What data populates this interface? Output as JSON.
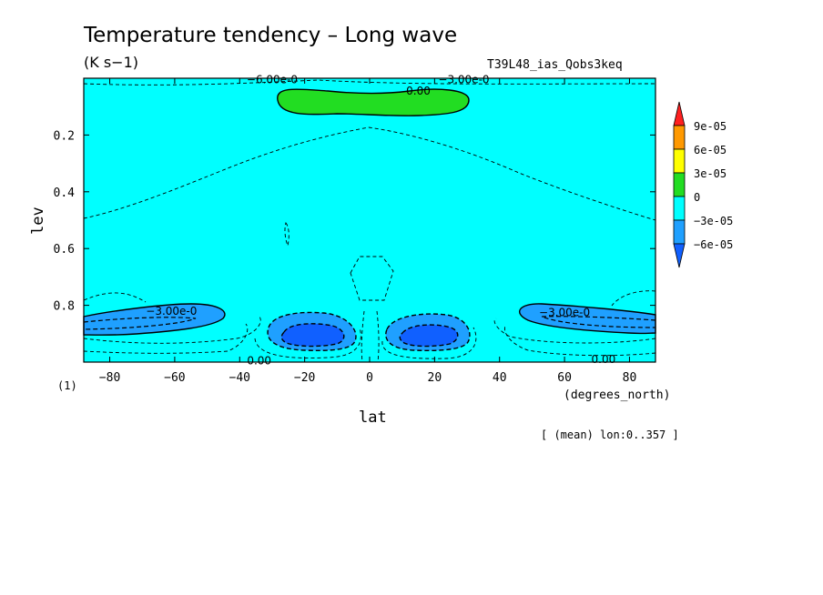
{
  "chart_data": {
    "type": "contour",
    "title": "Temperature tendency – Long wave",
    "units": "(K s−1)",
    "experiment": "T39L48_ias_Qobs3keq",
    "xlabel": "lat",
    "x_units": "(degrees_north)",
    "ylabel": "lev",
    "y_units": "(1)",
    "footnote": "[ (mean) lon:0..357 ]",
    "xlim": [
      -88,
      88
    ],
    "ylim": [
      0.0,
      1.0
    ],
    "y_inverted": true,
    "x_ticks": [
      -80,
      -60,
      -40,
      -20,
      0,
      20,
      40,
      60,
      80
    ],
    "x_tick_labels": [
      "−80",
      "−60",
      "−40",
      "−20",
      "0",
      "20",
      "40",
      "60",
      "80"
    ],
    "y_ticks": [
      0.2,
      0.4,
      0.6,
      0.8
    ],
    "y_tick_labels": [
      "0.2",
      "0.4",
      "0.6",
      "0.8"
    ],
    "colorbar": {
      "labels": [
        "9e-05",
        "6e-05",
        "3e-05",
        "0",
        "−3e-05",
        "−6e-05"
      ],
      "colors": [
        "#ff2020",
        "#ff9900",
        "#ffff00",
        "#22dd22",
        "#00ffff",
        "#1fa0ff",
        "#1060ff"
      ]
    },
    "contour_labels": [
      {
        "text": "−6.00e-0",
        "lat": -30,
        "lev": 0.005
      },
      {
        "text": "−3.00e-0",
        "lat": 29,
        "lev": 0.005
      },
      {
        "text": "0.00",
        "lat": 15,
        "lev": 0.045
      },
      {
        "text": "−3.00e-0",
        "lat": -61,
        "lev": 0.82
      },
      {
        "text": "−3.00e-0",
        "lat": 60,
        "lev": 0.825
      },
      {
        "text": "0.00",
        "lat": -34,
        "lev": 0.995
      },
      {
        "text": "0.00",
        "lat": 72,
        "lev": 0.99
      }
    ],
    "regions": [
      {
        "name": "warming-top",
        "value_range": "0 to 3e-05",
        "lat_range": [
          -27,
          29
        ],
        "lev_range": [
          0.04,
          0.12
        ]
      },
      {
        "name": "cooling-left-low",
        "value_range": "-3e-05 to -6e-05",
        "lat_range": [
          -88,
          -44
        ],
        "lev_range": [
          0.79,
          0.9
        ]
      },
      {
        "name": "cooling-right-low",
        "value_range": "-3e-05 to -6e-05",
        "lat_range": [
          45,
          88
        ],
        "lev_range": [
          0.79,
          0.88
        ]
      },
      {
        "name": "cooling-core-sh",
        "value_range": "< -6e-05",
        "lat_range": [
          -33,
          -7
        ],
        "lev_range": [
          0.82,
          0.95
        ]
      },
      {
        "name": "cooling-core-nh",
        "value_range": "< -6e-05",
        "lat_range": [
          5,
          33
        ],
        "lev_range": [
          0.82,
          0.95
        ]
      }
    ]
  }
}
